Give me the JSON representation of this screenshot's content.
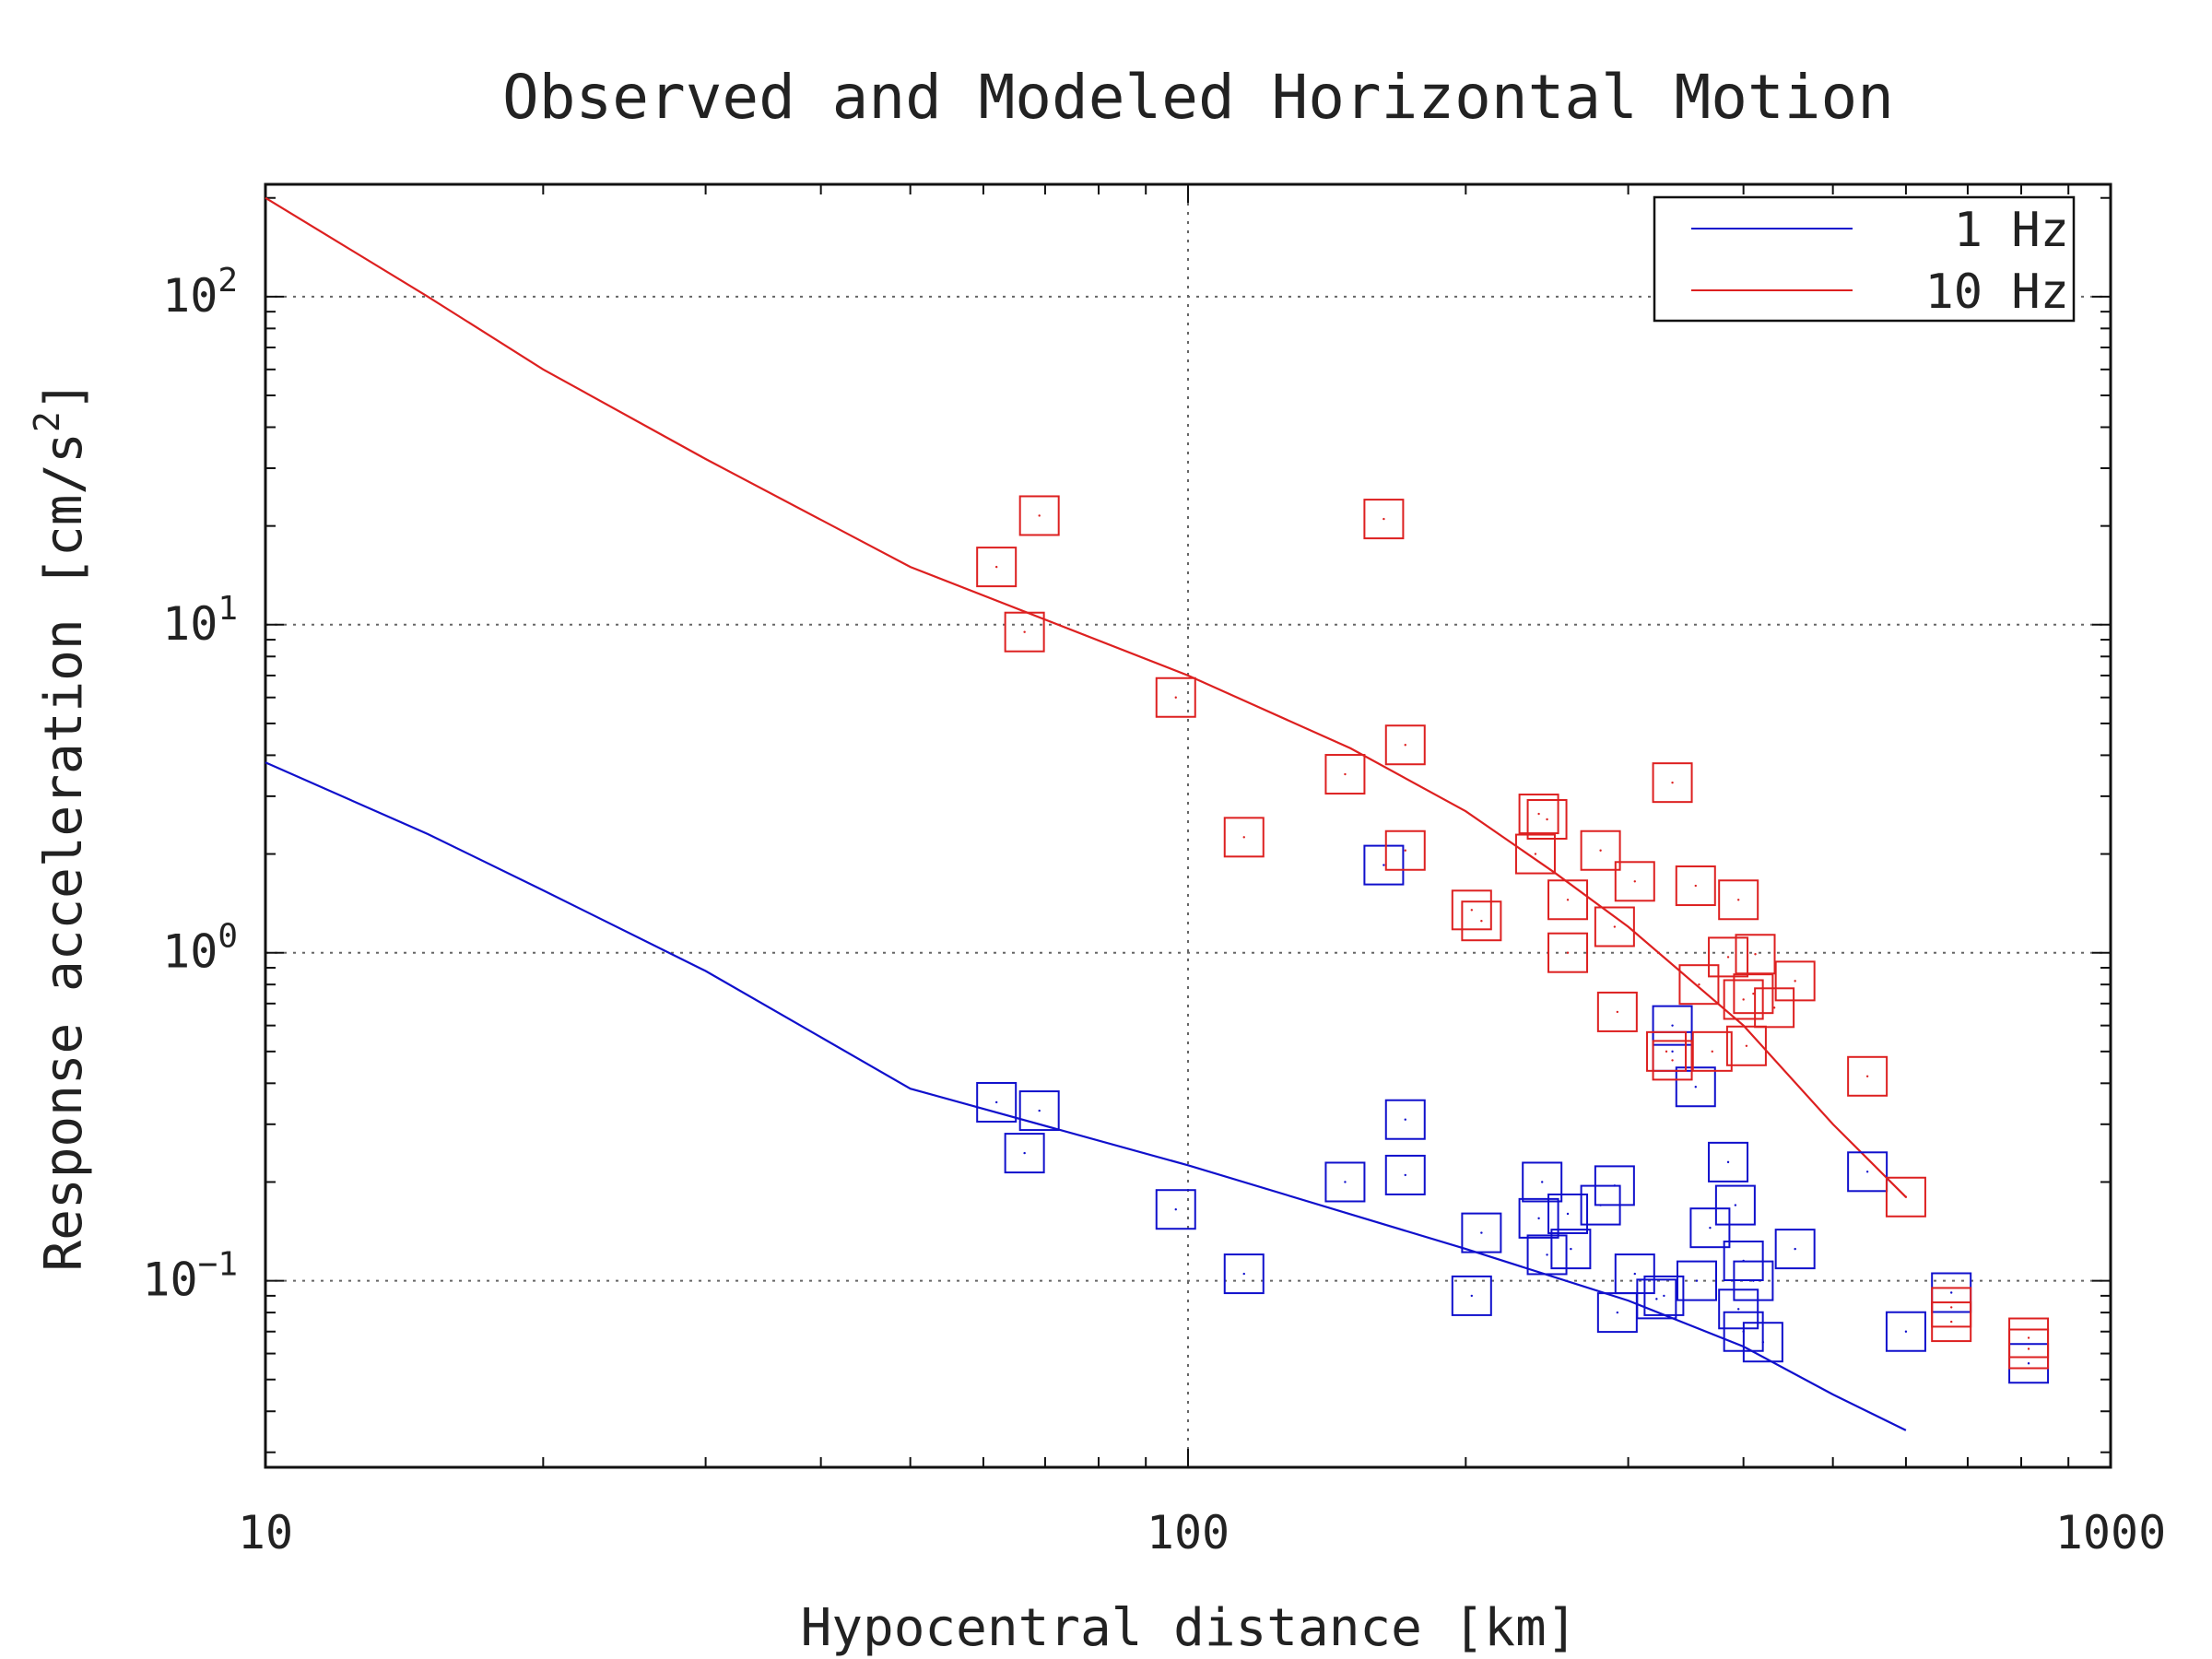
{
  "chart_data": {
    "type": "scatter",
    "title": "Observed and Modeled Horizontal Motion",
    "xlabel": "Hypocentral distance [km]",
    "ylabel": "Response acceleration [cm/s",
    "ylabel_superscript": "2",
    "ylabel_close": "]",
    "x_scale": "log",
    "y_scale": "log",
    "xlim": [
      10,
      1000
    ],
    "ylim": [
      0.027,
      220
    ],
    "grid": true,
    "legend_position": "top-right",
    "x_ticks": [
      {
        "value": 10,
        "label": "10"
      },
      {
        "value": 100,
        "label": "100"
      },
      {
        "value": 1000,
        "label": "1000"
      }
    ],
    "y_ticks": [
      {
        "value": 0.1,
        "base": "10",
        "exp": "−1"
      },
      {
        "value": 1,
        "base": "10",
        "exp": "0"
      },
      {
        "value": 10,
        "base": "10",
        "exp": "1"
      },
      {
        "value": 100,
        "base": "10",
        "exp": "2"
      }
    ],
    "series": [
      {
        "name": "1 Hz",
        "color": "#1010cc",
        "model_line": [
          [
            10,
            3.8
          ],
          [
            15,
            2.3
          ],
          [
            20,
            1.55
          ],
          [
            30,
            0.88
          ],
          [
            50,
            0.385
          ],
          [
            100,
            0.225
          ],
          [
            200,
            0.125
          ],
          [
            300,
            0.087
          ],
          [
            400,
            0.063
          ],
          [
            500,
            0.045
          ],
          [
            600,
            0.035
          ]
        ],
        "observed": [
          [
            62,
            0.35
          ],
          [
            69,
            0.33
          ],
          [
            66.5,
            0.245
          ],
          [
            97,
            0.165
          ],
          [
            115,
            0.105
          ],
          [
            148,
            0.2
          ],
          [
            163,
            1.85
          ],
          [
            172,
            0.31
          ],
          [
            172,
            0.21
          ],
          [
            203,
            0.09
          ],
          [
            208,
            0.14
          ],
          [
            240,
            0.155
          ],
          [
            242,
            0.2
          ],
          [
            245,
            0.12
          ],
          [
            258,
            0.16
          ],
          [
            260,
            0.125
          ],
          [
            280,
            0.17
          ],
          [
            290,
            0.195
          ],
          [
            292,
            0.08
          ],
          [
            305,
            0.105
          ],
          [
            322,
            0.088
          ],
          [
            328,
            0.09
          ],
          [
            335,
            0.6
          ],
          [
            335,
            0.5
          ],
          [
            355,
            0.39
          ],
          [
            356,
            0.1
          ],
          [
            368,
            0.145
          ],
          [
            385,
            0.23
          ],
          [
            392,
            0.17
          ],
          [
            395,
            0.082
          ],
          [
            400,
            0.115
          ],
          [
            400,
            0.07
          ],
          [
            410,
            0.1
          ],
          [
            420,
            0.065
          ],
          [
            455,
            0.125
          ],
          [
            545,
            0.215
          ],
          [
            600,
            0.07
          ],
          [
            672,
            0.092
          ],
          [
            815,
            0.056
          ]
        ]
      },
      {
        "name": "10 Hz",
        "color": "#dd2020",
        "model_line": [
          [
            10,
            200
          ],
          [
            15,
            100
          ],
          [
            20,
            60
          ],
          [
            30,
            32
          ],
          [
            50,
            15
          ],
          [
            100,
            7
          ],
          [
            150,
            4.2
          ],
          [
            200,
            2.7
          ],
          [
            250,
            1.75
          ],
          [
            300,
            1.2
          ],
          [
            400,
            0.6
          ],
          [
            500,
            0.3
          ],
          [
            600,
            0.18
          ]
        ],
        "observed": [
          [
            62,
            15
          ],
          [
            69,
            21.5
          ],
          [
            66.5,
            9.5
          ],
          [
            97,
            6
          ],
          [
            115,
            2.25
          ],
          [
            148,
            3.5
          ],
          [
            163,
            21
          ],
          [
            172,
            4.3
          ],
          [
            172,
            2.05
          ],
          [
            203,
            1.35
          ],
          [
            208,
            1.25
          ],
          [
            238,
            2
          ],
          [
            240,
            2.65
          ],
          [
            245,
            2.55
          ],
          [
            258,
            1.45
          ],
          [
            258,
            1.0
          ],
          [
            280,
            2.05
          ],
          [
            290,
            1.2
          ],
          [
            292,
            0.66
          ],
          [
            305,
            1.65
          ],
          [
            330,
            0.5
          ],
          [
            335,
            0.47
          ],
          [
            335,
            3.3
          ],
          [
            355,
            1.6
          ],
          [
            358,
            0.8
          ],
          [
            370,
            0.5
          ],
          [
            385,
            0.97
          ],
          [
            395,
            1.45
          ],
          [
            400,
            0.72
          ],
          [
            403,
            0.52
          ],
          [
            410,
            0.75
          ],
          [
            412,
            0.99
          ],
          [
            432,
            0.68
          ],
          [
            455,
            0.82
          ],
          [
            545,
            0.42
          ],
          [
            600,
            0.18
          ],
          [
            672,
            0.075
          ],
          [
            672,
            0.083
          ],
          [
            815,
            0.062
          ],
          [
            815,
            0.067
          ]
        ]
      }
    ]
  }
}
